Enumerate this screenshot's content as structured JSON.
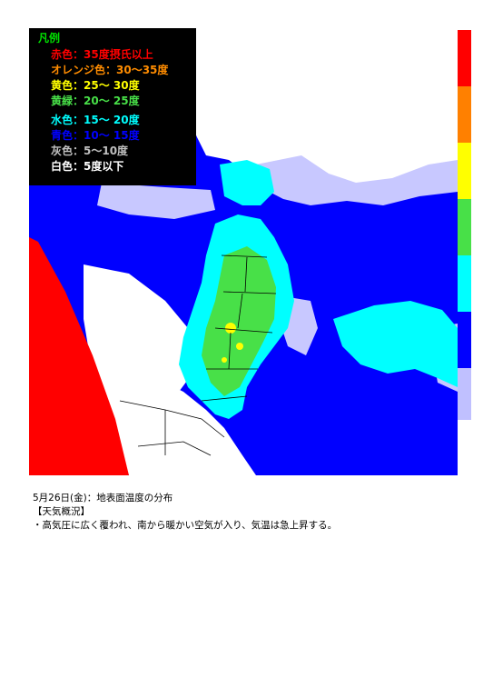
{
  "legend": {
    "title": "凡例",
    "title_color": "#00e000",
    "items": [
      {
        "label": "赤色：35度摂氏以上",
        "color": "#ff0000"
      },
      {
        "label": "オレンジ色：30〜35度",
        "color": "#ff8c00"
      },
      {
        "label": "黄色：25〜 30度",
        "color": "#ffff00"
      },
      {
        "label": "黄緑：20〜 25度",
        "color": "#48e048"
      },
      {
        "label": "水色：15〜 20度",
        "color": "#00ffff"
      },
      {
        "label": "青色：10〜 15度",
        "color": "#0000ff"
      },
      {
        "label": "灰色：5〜10度",
        "color": "#c0c0c0"
      },
      {
        "label": "白色：5度以下",
        "color": "#ffffff"
      }
    ]
  },
  "scale_colors": [
    "#ff0000",
    "#ff8000",
    "#ffff00",
    "#48e048",
    "#00ffff",
    "#0000ff",
    "#c0c0ff"
  ],
  "map_colors": {
    "sea_blue": "#0000ff",
    "cyan": "#00ffff",
    "green": "#48e048",
    "yellow": "#ffff00",
    "white": "#ffffff",
    "lavender": "#c8c8ff",
    "red": "#ff0000"
  },
  "caption": {
    "line1": "5月26日(金)：地表面温度の分布",
    "line2": "【天気概況】",
    "line3": "・高気圧に広く覆われ、南から暖かい空気が入り、気温は急上昇する。"
  }
}
